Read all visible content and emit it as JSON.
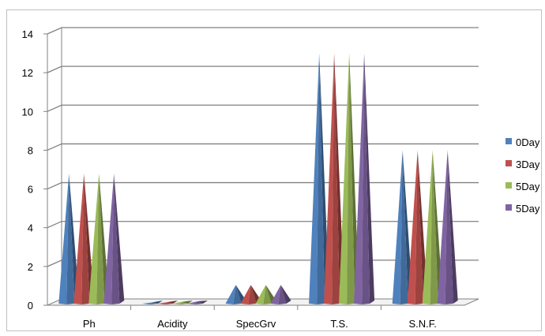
{
  "chart_data": {
    "type": "bar",
    "style": "3d-pyramid",
    "categories": [
      "Ph",
      "Acidity",
      "SpecGrv",
      "T.S.",
      "S.N.F."
    ],
    "series": [
      {
        "name": "0Day",
        "color": "#4F81BD",
        "values": [
          6.8,
          0.15,
          1.05,
          13.0,
          8.0
        ]
      },
      {
        "name": "3Day",
        "color": "#C0504D",
        "values": [
          6.8,
          0.16,
          1.05,
          13.0,
          8.0
        ]
      },
      {
        "name": "5Day",
        "color": "#9BBB59",
        "values": [
          6.8,
          0.18,
          1.05,
          13.0,
          8.0
        ]
      },
      {
        "name": "5Day",
        "color": "#8064A2",
        "values": [
          6.8,
          0.2,
          1.05,
          13.0,
          8.0
        ]
      }
    ],
    "yticks": [
      "0",
      "2",
      "4",
      "6",
      "8",
      "10",
      "12",
      "14"
    ],
    "ylim": [
      0,
      14
    ],
    "grid": true,
    "legend_position": "right"
  }
}
